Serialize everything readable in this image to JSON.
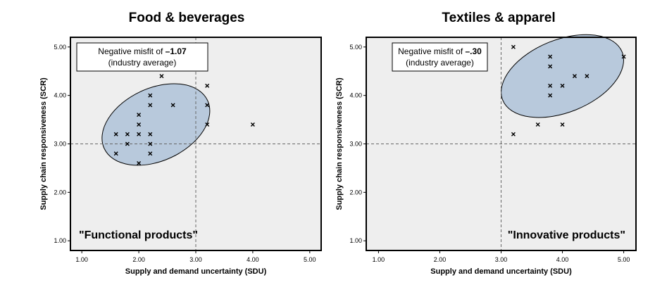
{
  "chart_data": [
    {
      "type": "scatter",
      "title": "Food & beverages",
      "xlabel": "Supply and demand uncertainty (SDU)",
      "ylabel": "Supply chain responsiveness (SCR)",
      "xlim": [
        0.8,
        5.2
      ],
      "ylim": [
        0.8,
        5.2
      ],
      "xticks": [
        "1.00",
        "2.00",
        "3.00",
        "4.00",
        "5.00"
      ],
      "yticks": [
        "1.00",
        "2.00",
        "3.00",
        "4.00",
        "5.00"
      ],
      "reference_lines": {
        "x": 3,
        "y": 3
      },
      "grid": false,
      "marker": "x",
      "points": [
        {
          "x": 1.6,
          "y": 3.2
        },
        {
          "x": 1.6,
          "y": 2.8
        },
        {
          "x": 1.8,
          "y": 3.2
        },
        {
          "x": 1.8,
          "y": 3.0
        },
        {
          "x": 2.0,
          "y": 3.6
        },
        {
          "x": 2.0,
          "y": 3.4
        },
        {
          "x": 2.0,
          "y": 3.2
        },
        {
          "x": 2.0,
          "y": 2.6
        },
        {
          "x": 2.2,
          "y": 4.0
        },
        {
          "x": 2.2,
          "y": 3.8
        },
        {
          "x": 2.2,
          "y": 3.2
        },
        {
          "x": 2.2,
          "y": 3.0
        },
        {
          "x": 2.2,
          "y": 2.8
        },
        {
          "x": 2.4,
          "y": 4.4
        },
        {
          "x": 2.6,
          "y": 3.8
        },
        {
          "x": 3.2,
          "y": 4.2
        },
        {
          "x": 3.2,
          "y": 3.8
        },
        {
          "x": 3.2,
          "y": 3.4
        },
        {
          "x": 4.0,
          "y": 3.4
        }
      ],
      "ellipse": {
        "cx": 2.3,
        "cy": 3.4,
        "rx": 1.0,
        "ry": 0.75,
        "rotation_deg": -25
      },
      "annotation": {
        "prefix": "Negative misfit of ",
        "value": "–1.07",
        "line2": "(industry average)"
      },
      "quadrant_label": "\"Functional products\""
    },
    {
      "type": "scatter",
      "title": "Textiles & apparel",
      "xlabel": "Supply and demand uncertainty (SDU)",
      "ylabel": "Supply chain responsiveness (SCR)",
      "xlim": [
        0.8,
        5.2
      ],
      "ylim": [
        0.8,
        5.2
      ],
      "xticks": [
        "1.00",
        "2.00",
        "3.00",
        "4.00",
        "5.00"
      ],
      "yticks": [
        "1.00",
        "2.00",
        "3.00",
        "4.00",
        "5.00"
      ],
      "reference_lines": {
        "x": 3,
        "y": 3
      },
      "grid": false,
      "marker": "x",
      "points": [
        {
          "x": 3.2,
          "y": 5.0
        },
        {
          "x": 3.2,
          "y": 3.2
        },
        {
          "x": 3.6,
          "y": 3.4
        },
        {
          "x": 3.8,
          "y": 4.8
        },
        {
          "x": 3.8,
          "y": 4.6
        },
        {
          "x": 3.8,
          "y": 4.2
        },
        {
          "x": 3.8,
          "y": 4.0
        },
        {
          "x": 4.0,
          "y": 4.2
        },
        {
          "x": 4.0,
          "y": 3.4
        },
        {
          "x": 4.2,
          "y": 4.4
        },
        {
          "x": 4.4,
          "y": 4.4
        },
        {
          "x": 5.0,
          "y": 4.8
        }
      ],
      "ellipse": {
        "cx": 4.0,
        "cy": 4.4,
        "rx": 1.05,
        "ry": 0.75,
        "rotation_deg": -22
      },
      "annotation": {
        "prefix": "Negative misfit of ",
        "value": "–.30",
        "line2": "(industry average)"
      },
      "quadrant_label": "\"Innovative products\""
    }
  ],
  "style": {
    "plot_bg": "#eeeeee",
    "ellipse_fill": "#b8c9dc",
    "ellipse_stroke": "#000000",
    "reference_line": "#666666"
  }
}
